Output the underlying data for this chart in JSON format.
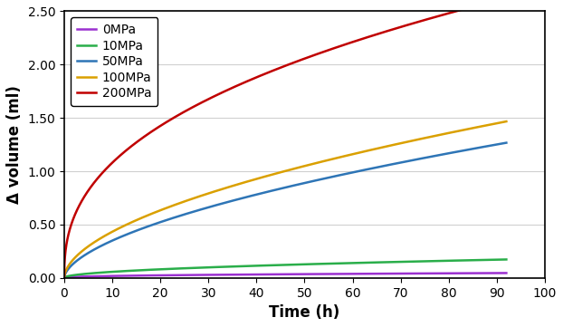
{
  "title": "",
  "xlabel": "Time (h)",
  "ylabel": "Δ volume (ml)",
  "xlim": [
    0,
    100
  ],
  "ylim": [
    0,
    2.5
  ],
  "xticks": [
    0,
    10,
    20,
    30,
    40,
    50,
    60,
    70,
    80,
    90,
    100
  ],
  "yticks": [
    0.0,
    0.5,
    1.0,
    1.5,
    2.0,
    2.5
  ],
  "series": [
    {
      "label": "0MPa",
      "color": "#9B30D0",
      "power": 0.42,
      "scale": 0.0068
    },
    {
      "label": "10MPa",
      "color": "#2AAE4A",
      "power": 0.5,
      "scale": 0.018
    },
    {
      "label": "50MPa",
      "color": "#2E75B6",
      "power": 0.58,
      "scale": 0.092
    },
    {
      "label": "100MPa",
      "color": "#DAA000",
      "power": 0.55,
      "scale": 0.122
    },
    {
      "label": "200MPa",
      "color": "#C00000",
      "power": 0.4,
      "scale": 0.43
    }
  ],
  "legend_fontsize": 10,
  "axis_label_fontsize": 12,
  "tick_fontsize": 10,
  "linewidth": 1.8,
  "grid_color": "#d0d0d0",
  "background_color": "#ffffff"
}
